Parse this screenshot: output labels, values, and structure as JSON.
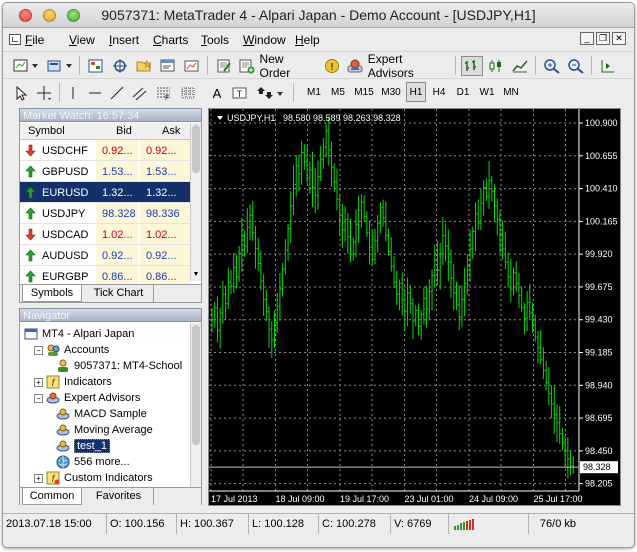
{
  "window": {
    "title": "9057371: MetaTrader 4 - Alpari Japan - Demo Account - [USDJPY,H1]"
  },
  "menu": {
    "items": [
      {
        "label": "File",
        "accel": "F",
        "rest": "ile"
      },
      {
        "label": "View",
        "accel": "V",
        "rest": "iew"
      },
      {
        "label": "Insert",
        "accel": "I",
        "rest": "nsert"
      },
      {
        "label": "Charts",
        "accel": "C",
        "rest": "harts"
      },
      {
        "label": "Tools",
        "accel": "T",
        "rest": "ools"
      },
      {
        "label": "Window",
        "accel": "W",
        "rest": "indow"
      },
      {
        "label": "Help",
        "accel": "H",
        "rest": "elp"
      }
    ]
  },
  "toolbar": {
    "new_order_label": "New Order",
    "expert_advisors_label": "Expert Advisors",
    "timeframes": [
      "M1",
      "M5",
      "M15",
      "M30",
      "H1",
      "H4",
      "D1",
      "W1",
      "MN"
    ],
    "active_timeframe": "H1",
    "text_tool_label": "A"
  },
  "market_watch": {
    "title": "Market Watch: 16:57:34",
    "columns": {
      "symbol": "Symbol",
      "bid": "Bid",
      "ask": "Ask"
    },
    "rows": [
      {
        "symbol": "USDCHF",
        "bid": "0.92...",
        "ask": "0.92...",
        "direction": "down",
        "color": "#cc0000"
      },
      {
        "symbol": "GBPUSD",
        "bid": "1.53...",
        "ask": "1.53...",
        "direction": "up",
        "color": "#1a3cb0"
      },
      {
        "symbol": "EURUSD",
        "bid": "1.32...",
        "ask": "1.32...",
        "direction": "up",
        "color": "#ffffff"
      },
      {
        "symbol": "USDJPY",
        "bid": "98.328",
        "ask": "98.336",
        "direction": "up",
        "color": "#1a3cb0"
      },
      {
        "symbol": "USDCAD",
        "bid": "1.02...",
        "ask": "1.02...",
        "direction": "down",
        "color": "#cc0000"
      },
      {
        "symbol": "AUDUSD",
        "bid": "0.92...",
        "ask": "0.92...",
        "direction": "up",
        "color": "#1a3cb0"
      },
      {
        "symbol": "EURGBP",
        "bid": "0.86...",
        "ask": "0.86...",
        "direction": "up",
        "color": "#1a3cb0"
      }
    ],
    "selected_index": 2,
    "tabs": [
      "Symbols",
      "Tick Chart"
    ]
  },
  "navigator": {
    "title": "Navigator",
    "tree": [
      {
        "label": "MT4 - Alpari Japan",
        "level": 0,
        "expander": "",
        "icon": "terminal-icon"
      },
      {
        "label": "Accounts",
        "level": 1,
        "expander": "−",
        "icon": "accounts-icon"
      },
      {
        "label": "9057371: MT4-School",
        "level": 2,
        "expander": "",
        "icon": "account-user-icon"
      },
      {
        "label": "Indicators",
        "level": 1,
        "expander": "+",
        "icon": "indicators-icon"
      },
      {
        "label": "Expert Advisors",
        "level": 1,
        "expander": "−",
        "icon": "expert-advisors-icon"
      },
      {
        "label": "MACD Sample",
        "level": 2,
        "expander": "",
        "icon": "expert-icon"
      },
      {
        "label": "Moving Average",
        "level": 2,
        "expander": "",
        "icon": "expert-icon"
      },
      {
        "label": "test_1",
        "level": 2,
        "expander": "",
        "icon": "expert-icon",
        "selected": true
      },
      {
        "label": "556 more...",
        "level": 2,
        "expander": "",
        "icon": "globe-icon"
      },
      {
        "label": "Custom Indicators",
        "level": 1,
        "expander": "+",
        "icon": "custom-indicators-icon"
      }
    ],
    "tabs": [
      "Common",
      "Favorites"
    ]
  },
  "chart_data": {
    "type": "bar",
    "symbol_label": "USDJPY,H1",
    "ohlc_label": "98.580 98.589 98.263 98.328",
    "current_price": "98.328",
    "y_ticks": [
      "100.900",
      "100.655",
      "100.410",
      "100.165",
      "99.920",
      "99.675",
      "99.430",
      "99.185",
      "98.940",
      "98.695",
      "98.450",
      "98.205"
    ],
    "x_ticks": [
      "17 Jul 2013",
      "18 Jul 09:00",
      "19 Jul 17:00",
      "23 Jul 01:00",
      "24 Jul 09:00",
      "25 Jul 17:00"
    ],
    "ylim": [
      98.15,
      100.96
    ],
    "bar_color": "#00dd00",
    "grid": true,
    "close_series": [
      99.43,
      99.52,
      99.35,
      99.48,
      99.62,
      99.55,
      99.71,
      99.68,
      99.82,
      99.75,
      99.93,
      100.05,
      99.98,
      100.12,
      100.21,
      100.08,
      99.96,
      99.85,
      99.72,
      99.58,
      99.49,
      99.36,
      99.28,
      99.41,
      99.53,
      99.66,
      99.81,
      99.95,
      100.11,
      100.28,
      100.44,
      100.58,
      100.52,
      100.68,
      100.61,
      100.49,
      100.55,
      100.42,
      100.36,
      100.5,
      100.63,
      100.72,
      100.84,
      100.7,
      100.57,
      100.46,
      100.33,
      100.21,
      100.1,
      100.18,
      100.05,
      99.92,
      100.01,
      100.14,
      100.25,
      100.31,
      100.2,
      100.08,
      99.97,
      99.88,
      100.02,
      100.15,
      100.27,
      100.19,
      100.06,
      99.94,
      99.83,
      99.71,
      99.62,
      99.7,
      99.58,
      99.49,
      99.63,
      99.55,
      99.42,
      99.5,
      99.38,
      99.47,
      99.59,
      99.51,
      99.64,
      99.76,
      99.88,
      99.8,
      99.92,
      100.06,
      99.98,
      99.86,
      99.74,
      99.63,
      99.54,
      99.45,
      99.58,
      99.7,
      99.83,
      99.96,
      100.09,
      100.22,
      100.15,
      100.3,
      100.42,
      100.35,
      100.47,
      100.39,
      100.28,
      100.18,
      100.07,
      99.96,
      99.86,
      99.75,
      99.66,
      99.78,
      99.7,
      99.61,
      99.52,
      99.44,
      99.56,
      99.48,
      99.39,
      99.3,
      99.22,
      99.13,
      99.05,
      98.96,
      98.88,
      98.8,
      98.72,
      98.66,
      98.58,
      98.51,
      98.45,
      98.39,
      98.34,
      98.328
    ]
  },
  "statusbar": {
    "datetime": "2013.07.18 15:00",
    "open": "O: 100.156",
    "high": "H: 100.367",
    "low": "L: 100.128",
    "close": "C: 100.278",
    "volume": "V: 6769",
    "traffic": "76/0 kb"
  }
}
